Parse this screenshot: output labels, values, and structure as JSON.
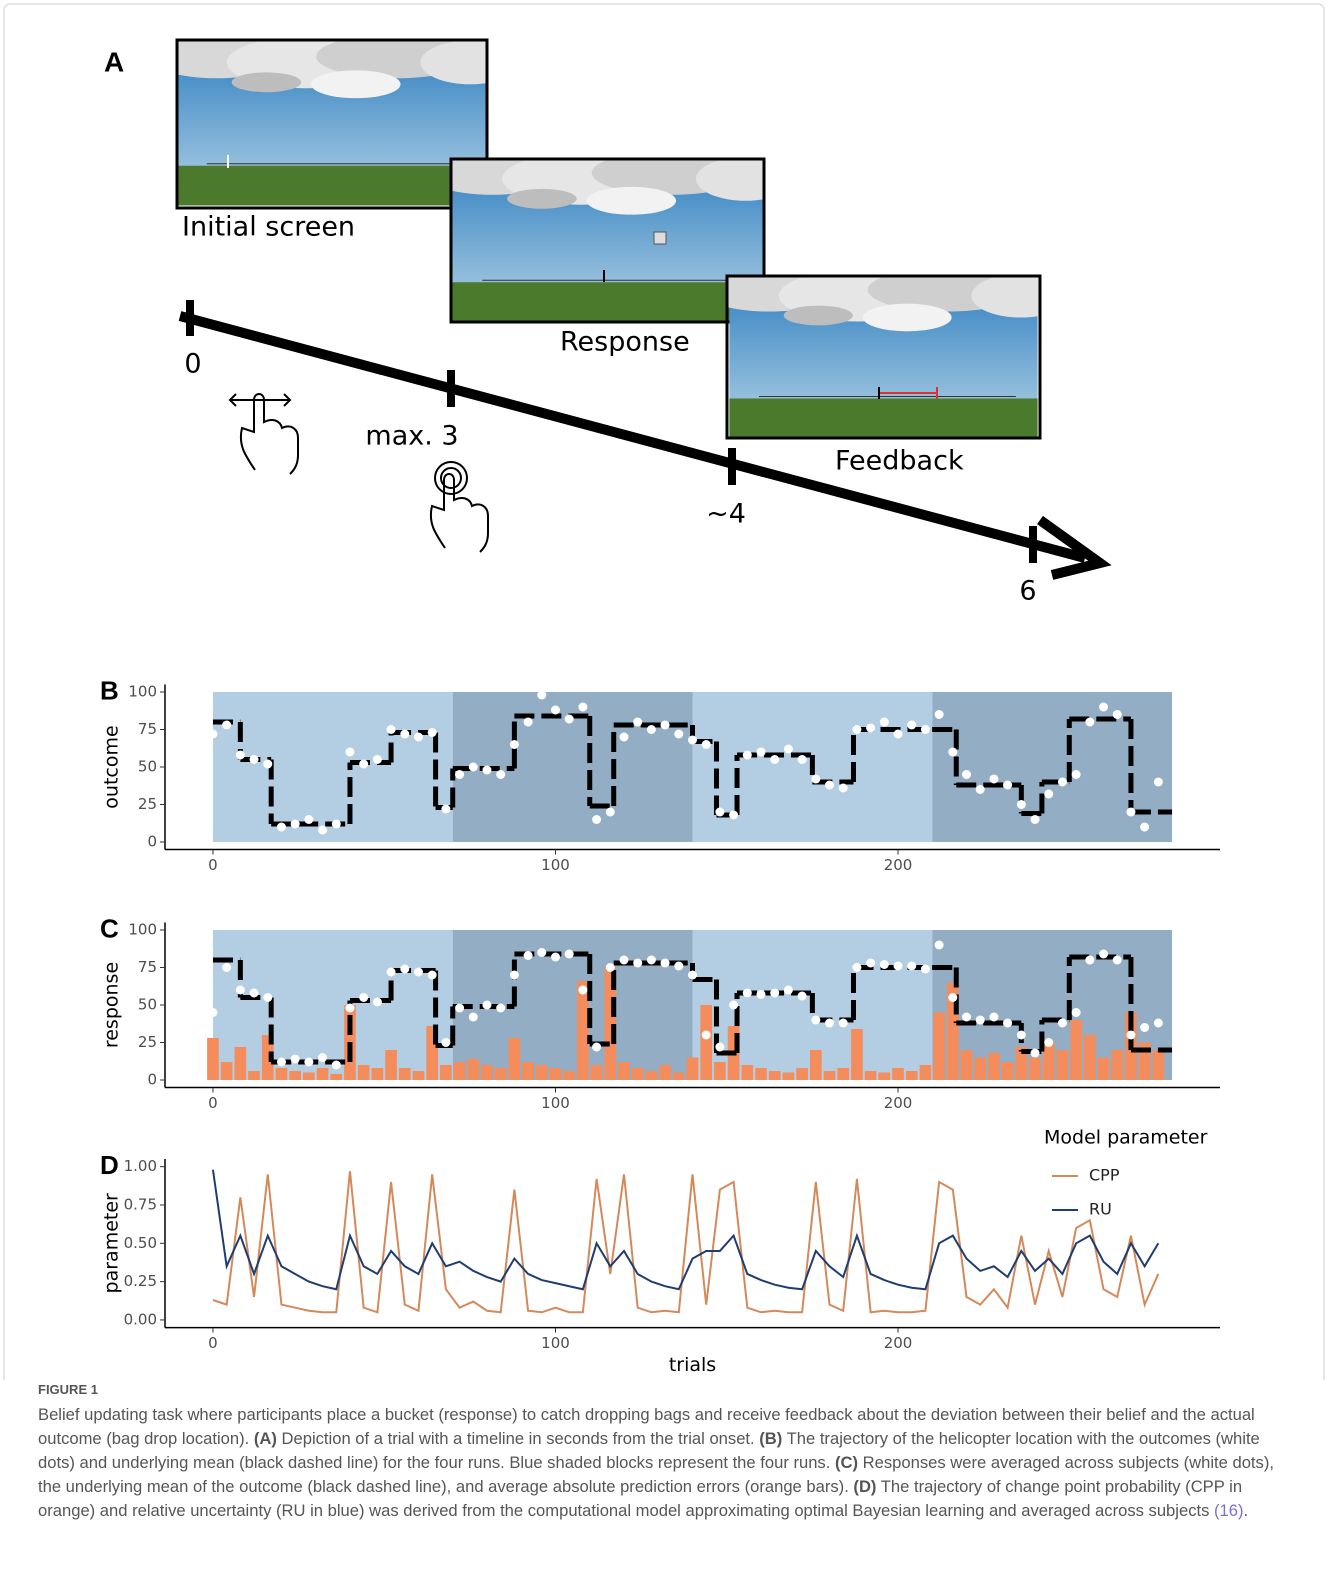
{
  "panel_a": {
    "label": "A",
    "screens": [
      "Initial screen",
      "Response",
      "Feedback"
    ],
    "timeline": [
      "0",
      "max. 3",
      "~4",
      "6"
    ]
  },
  "chart_data": [
    {
      "type": "combo",
      "panel": "B",
      "y_label": "outcome",
      "xlim": [
        -14,
        294
      ],
      "xticks": [
        0,
        100,
        200
      ],
      "ylim": [
        -5,
        105
      ],
      "yticks": [
        0,
        25,
        50,
        75,
        100
      ],
      "bands": [
        {
          "start": 0,
          "end": 70,
          "color": "#b3cde3"
        },
        {
          "start": 70,
          "end": 140,
          "color": "#93aec4"
        },
        {
          "start": 140,
          "end": 210,
          "color": "#b3cde3"
        },
        {
          "start": 210,
          "end": 280,
          "color": "#93aec4"
        }
      ],
      "series": [
        {
          "type": "step",
          "color": "#000000",
          "bins": [
            0,
            8,
            17,
            40,
            52,
            65,
            70,
            88,
            110,
            117,
            140,
            147,
            153,
            175,
            187,
            210,
            217,
            236,
            242,
            250,
            268,
            280
          ],
          "values": [
            80,
            55,
            12,
            53,
            73,
            23,
            49,
            84,
            24,
            78,
            67,
            18,
            58,
            40,
            75,
            75,
            38,
            19,
            40,
            82,
            20
          ]
        },
        {
          "type": "scatter",
          "color": "#ffffff",
          "x": [
            0,
            4,
            8,
            12,
            16,
            20,
            24,
            28,
            32,
            36,
            40,
            44,
            48,
            52,
            56,
            60,
            64,
            68,
            72,
            76,
            80,
            84,
            88,
            92,
            96,
            100,
            104,
            108,
            112,
            116,
            120,
            124,
            128,
            132,
            136,
            140,
            144,
            148,
            152,
            156,
            160,
            164,
            168,
            172,
            176,
            180,
            184,
            188,
            192,
            196,
            200,
            204,
            208,
            212,
            216,
            220,
            224,
            228,
            232,
            236,
            240,
            244,
            248,
            252,
            256,
            260,
            264,
            268,
            272,
            276
          ],
          "values": [
            72,
            78,
            58,
            55,
            52,
            10,
            12,
            15,
            8,
            12,
            60,
            52,
            55,
            75,
            72,
            70,
            73,
            22,
            45,
            50,
            48,
            45,
            65,
            80,
            98,
            88,
            82,
            90,
            15,
            20,
            70,
            80,
            75,
            78,
            72,
            68,
            65,
            20,
            18,
            58,
            60,
            55,
            62,
            55,
            42,
            38,
            36,
            75,
            76,
            80,
            72,
            78,
            75,
            85,
            60,
            45,
            35,
            42,
            38,
            25,
            15,
            32,
            40,
            45,
            80,
            90,
            85,
            20,
            10,
            40
          ]
        }
      ]
    },
    {
      "type": "combo",
      "panel": "C",
      "y_label": "response",
      "xlim": [
        -14,
        294
      ],
      "xticks": [
        0,
        100,
        200
      ],
      "ylim": [
        -5,
        105
      ],
      "yticks": [
        0,
        25,
        50,
        75,
        100
      ],
      "bands": [
        {
          "start": 0,
          "end": 70,
          "color": "#b3cde3"
        },
        {
          "start": 70,
          "end": 140,
          "color": "#93aec4"
        },
        {
          "start": 140,
          "end": 210,
          "color": "#b3cde3"
        },
        {
          "start": 210,
          "end": 280,
          "color": "#93aec4"
        }
      ],
      "series": [
        {
          "type": "bar",
          "color": "#f48c5c",
          "x": [
            0,
            4,
            8,
            12,
            16,
            20,
            24,
            28,
            32,
            36,
            40,
            44,
            48,
            52,
            56,
            60,
            64,
            68,
            72,
            76,
            80,
            84,
            88,
            92,
            96,
            100,
            104,
            108,
            112,
            116,
            120,
            124,
            128,
            132,
            136,
            140,
            144,
            148,
            152,
            156,
            160,
            164,
            168,
            172,
            176,
            180,
            184,
            188,
            192,
            196,
            200,
            204,
            208,
            212,
            216,
            220,
            224,
            228,
            232,
            236,
            240,
            244,
            248,
            252,
            256,
            260,
            264,
            268,
            272,
            276
          ],
          "values": [
            28,
            12,
            22,
            6,
            30,
            8,
            6,
            5,
            8,
            4,
            50,
            10,
            8,
            20,
            8,
            6,
            36,
            10,
            12,
            14,
            10,
            8,
            28,
            12,
            10,
            8,
            6,
            66,
            10,
            75,
            12,
            8,
            6,
            10,
            5,
            15,
            50,
            12,
            36,
            10,
            8,
            6,
            5,
            8,
            20,
            6,
            8,
            34,
            6,
            5,
            8,
            6,
            10,
            45,
            65,
            20,
            15,
            18,
            12,
            22,
            15,
            25,
            20,
            40,
            30,
            15,
            20,
            45,
            25,
            20
          ]
        },
        {
          "type": "step",
          "color": "#000000",
          "bins": [
            0,
            8,
            17,
            40,
            52,
            65,
            70,
            88,
            110,
            117,
            140,
            147,
            153,
            175,
            187,
            210,
            217,
            236,
            242,
            250,
            268,
            280
          ],
          "values": [
            80,
            55,
            12,
            53,
            73,
            23,
            49,
            84,
            24,
            78,
            67,
            18,
            58,
            40,
            75,
            75,
            38,
            19,
            40,
            82,
            20
          ]
        },
        {
          "type": "scatter",
          "color": "#ffffff",
          "x": [
            0,
            4,
            8,
            12,
            16,
            20,
            24,
            28,
            32,
            36,
            40,
            44,
            48,
            52,
            56,
            60,
            64,
            68,
            72,
            76,
            80,
            84,
            88,
            92,
            96,
            100,
            104,
            108,
            112,
            116,
            120,
            124,
            128,
            132,
            136,
            140,
            144,
            148,
            152,
            156,
            160,
            164,
            168,
            172,
            176,
            180,
            184,
            188,
            192,
            196,
            200,
            204,
            208,
            212,
            216,
            220,
            224,
            228,
            232,
            236,
            240,
            244,
            248,
            252,
            256,
            260,
            264,
            268,
            272,
            276
          ],
          "values": [
            45,
            75,
            60,
            58,
            55,
            12,
            14,
            12,
            15,
            10,
            48,
            55,
            52,
            72,
            74,
            72,
            70,
            25,
            48,
            42,
            50,
            48,
            70,
            83,
            85,
            82,
            84,
            60,
            22,
            75,
            80,
            78,
            80,
            78,
            76,
            70,
            30,
            22,
            50,
            58,
            57,
            58,
            60,
            56,
            40,
            38,
            38,
            75,
            78,
            77,
            76,
            76,
            74,
            90,
            55,
            42,
            40,
            42,
            38,
            30,
            18,
            25,
            38,
            45,
            80,
            84,
            80,
            30,
            35,
            38
          ]
        }
      ]
    },
    {
      "type": "line",
      "panel": "D",
      "y_label": "parameter",
      "x_label": "trials",
      "xlim": [
        -14,
        294
      ],
      "xticks": [
        0,
        100,
        200
      ],
      "ylim": [
        -0.05,
        1.05
      ],
      "yticks": [
        {
          "value": 0,
          "label": "0.00"
        },
        {
          "value": 0.25,
          "label": "0.25"
        },
        {
          "value": 0.5,
          "label": "0.50"
        },
        {
          "value": 0.75,
          "label": "0.75"
        },
        {
          "value": 1,
          "label": "1.00"
        }
      ],
      "legend": "top-right",
      "legend_title": "Model parameter",
      "x": [
        0,
        4,
        8,
        12,
        16,
        20,
        24,
        28,
        32,
        36,
        40,
        44,
        48,
        52,
        56,
        60,
        64,
        68,
        72,
        76,
        80,
        84,
        88,
        92,
        96,
        100,
        104,
        108,
        112,
        116,
        120,
        124,
        128,
        132,
        136,
        140,
        144,
        148,
        152,
        156,
        160,
        164,
        168,
        172,
        176,
        180,
        184,
        188,
        192,
        196,
        200,
        204,
        208,
        212,
        216,
        220,
        224,
        228,
        232,
        236,
        240,
        244,
        248,
        252,
        256,
        260,
        264,
        268,
        272,
        276
      ],
      "series": [
        {
          "name": "CPP",
          "color": "#d4895a",
          "values": [
            0.13,
            0.1,
            0.8,
            0.15,
            0.95,
            0.1,
            0.08,
            0.06,
            0.05,
            0.05,
            0.97,
            0.08,
            0.05,
            0.9,
            0.1,
            0.06,
            0.95,
            0.2,
            0.08,
            0.12,
            0.06,
            0.05,
            0.85,
            0.06,
            0.05,
            0.08,
            0.05,
            0.05,
            0.92,
            0.3,
            0.95,
            0.08,
            0.05,
            0.06,
            0.05,
            0.95,
            0.1,
            0.85,
            0.9,
            0.08,
            0.05,
            0.06,
            0.05,
            0.05,
            0.9,
            0.1,
            0.06,
            0.92,
            0.05,
            0.06,
            0.05,
            0.05,
            0.06,
            0.9,
            0.85,
            0.15,
            0.1,
            0.2,
            0.08,
            0.55,
            0.1,
            0.45,
            0.15,
            0.6,
            0.65,
            0.2,
            0.15,
            0.55,
            0.1,
            0.3
          ]
        },
        {
          "name": "RU",
          "color": "#1f3d6e",
          "values": [
            0.98,
            0.35,
            0.55,
            0.3,
            0.55,
            0.35,
            0.3,
            0.25,
            0.22,
            0.2,
            0.55,
            0.35,
            0.3,
            0.45,
            0.35,
            0.3,
            0.5,
            0.35,
            0.38,
            0.32,
            0.28,
            0.25,
            0.4,
            0.3,
            0.26,
            0.24,
            0.22,
            0.2,
            0.5,
            0.35,
            0.45,
            0.3,
            0.25,
            0.22,
            0.2,
            0.4,
            0.45,
            0.45,
            0.55,
            0.3,
            0.26,
            0.23,
            0.21,
            0.2,
            0.45,
            0.35,
            0.28,
            0.55,
            0.3,
            0.26,
            0.23,
            0.21,
            0.2,
            0.5,
            0.55,
            0.4,
            0.32,
            0.35,
            0.28,
            0.45,
            0.32,
            0.4,
            0.3,
            0.5,
            0.55,
            0.38,
            0.3,
            0.5,
            0.35,
            0.5
          ]
        }
      ]
    }
  ],
  "caption": {
    "label": "FIGURE 1",
    "parts": [
      "Belief updating task where participants place a bucket (response) to catch dropping bags and receive feedback about the deviation between their belief and the actual outcome (bag drop location). ",
      "(A)",
      " Depiction of a trial with a timeline in seconds from the trial onset. ",
      "(B)",
      " The trajectory of the helicopter location with the outcomes (white dots) and underlying mean (black dashed line) for the four runs. Blue shaded blocks represent the four runs. ",
      "(C)",
      " Responses were averaged across subjects (white dots), the underlying mean of the outcome (black dashed line), and average absolute prediction errors (orange bars). ",
      "(D)",
      " The trajectory of change point probability (CPP in orange) and relative uncertainty (RU in blue) was derived from the computational model approximating optimal Bayesian learning and averaged across subjects ",
      "(16)",
      "."
    ]
  }
}
